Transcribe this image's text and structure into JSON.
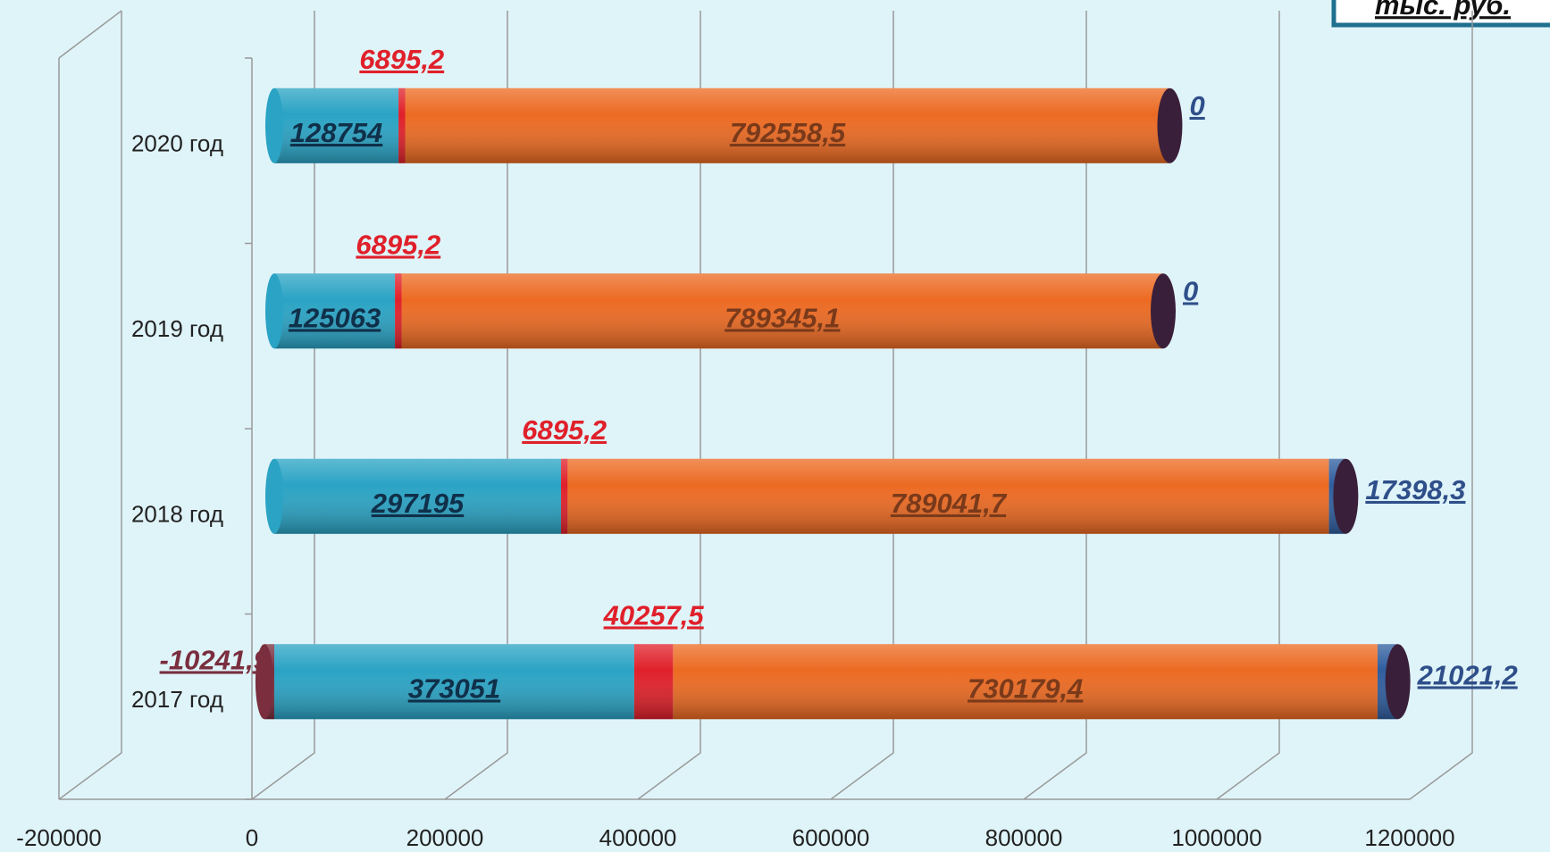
{
  "chart_data": {
    "type": "bar",
    "orientation": "horizontal",
    "stacked": true,
    "unit": "тыс. руб.",
    "categories": [
      "2017 год",
      "2018 год",
      "2019 год",
      "2020 год"
    ],
    "series": [
      {
        "color": "#7a2e3e",
        "values": [
          -10241.9,
          null,
          null,
          null
        ],
        "value_labels": [
          "-10241,9",
          null,
          null,
          null
        ]
      },
      {
        "color": "#2aa3c4",
        "values": [
          373051,
          297195,
          125063,
          128754
        ]
      },
      {
        "color": "#e0202a",
        "values": [
          40257.5,
          6895.2,
          6895.2,
          6895.2
        ],
        "value_labels": [
          "40257,5",
          "6895,2",
          "6895,2",
          "6895,2"
        ]
      },
      {
        "color": "#ec6a22",
        "values": [
          730179.4,
          789041.7,
          789345.1,
          792558.5
        ],
        "value_labels": [
          "730179,4",
          "789041,7",
          "789345,1",
          "792558,5"
        ]
      },
      {
        "color": "#2f5d9e",
        "values": [
          21021.2,
          17398.3,
          0,
          0
        ],
        "value_labels": [
          "21021,2",
          "17398,3",
          "0",
          "0"
        ]
      }
    ],
    "xlim": [
      -200000,
      1200000
    ],
    "xticks": [
      -200000,
      0,
      200000,
      400000,
      600000,
      800000,
      1000000,
      1200000
    ],
    "grid": true
  }
}
